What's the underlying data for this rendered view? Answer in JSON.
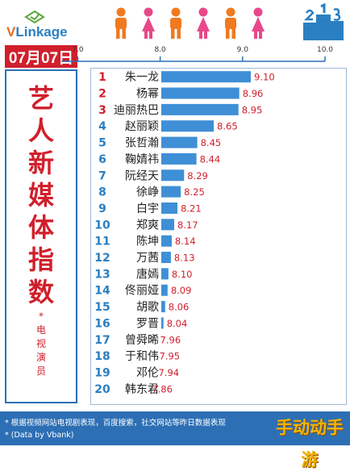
{
  "header": {
    "logo_text_v": "V",
    "logo_text_rest": "Linkage",
    "date": "07月07日"
  },
  "side": {
    "title_chars": [
      "艺",
      "人",
      "新",
      "媒",
      "体",
      "指",
      "数"
    ],
    "sub_chars": [
      "*",
      "电",
      "视",
      "演",
      "员"
    ]
  },
  "footer": {
    "note1": "* 根据视频网站电视剧表现，百度搜索，社交网站等昨日数据表现",
    "note2": "* (Data by Vbank)"
  },
  "watermark": "手动动手游",
  "colors": {
    "bar": "#3f8fd6",
    "rank": "#2a7fc2",
    "rank_top": "#d11f2c",
    "value": "#d11f2c",
    "accent_orange": "#f07a1f",
    "accent_pink": "#e8488a"
  },
  "chart_data": {
    "type": "bar",
    "orientation": "horizontal",
    "xlim": [
      6.8,
      10.0
    ],
    "xticks": [
      "7.0",
      "8.0",
      "9.0",
      "10.0"
    ],
    "categories": [
      "朱一龙",
      "杨幂",
      "迪丽热巴",
      "赵丽颖",
      "张哲瀚",
      "鞠婧祎",
      "阮经天",
      "徐峥",
      "白宇",
      "郑爽",
      "陈坤",
      "万茜",
      "唐嫣",
      "佟丽娅",
      "胡歌",
      "罗晋",
      "曾舜晞",
      "于和伟",
      "邓伦",
      "韩东君"
    ],
    "ranks": [
      "1",
      "2",
      "3",
      "4",
      "5",
      "6",
      "7",
      "8",
      "9",
      "10",
      "11",
      "12",
      "13",
      "14",
      "15",
      "16",
      "17",
      "18",
      "19",
      "20"
    ],
    "values": [
      9.1,
      8.96,
      8.95,
      8.65,
      8.45,
      8.44,
      8.29,
      8.25,
      8.21,
      8.17,
      8.14,
      8.13,
      8.1,
      8.09,
      8.06,
      8.04,
      7.96,
      7.95,
      7.94,
      7.86
    ],
    "value_labels": [
      "9.10",
      "8.96",
      "8.95",
      "8.65",
      "8.45",
      "8.44",
      "8.29",
      "8.25",
      "8.21",
      "8.17",
      "8.14",
      "8.13",
      "8.10",
      "8.09",
      "8.06",
      "8.04",
      "7.96",
      "7.95",
      "7.94",
      "7.86"
    ]
  }
}
